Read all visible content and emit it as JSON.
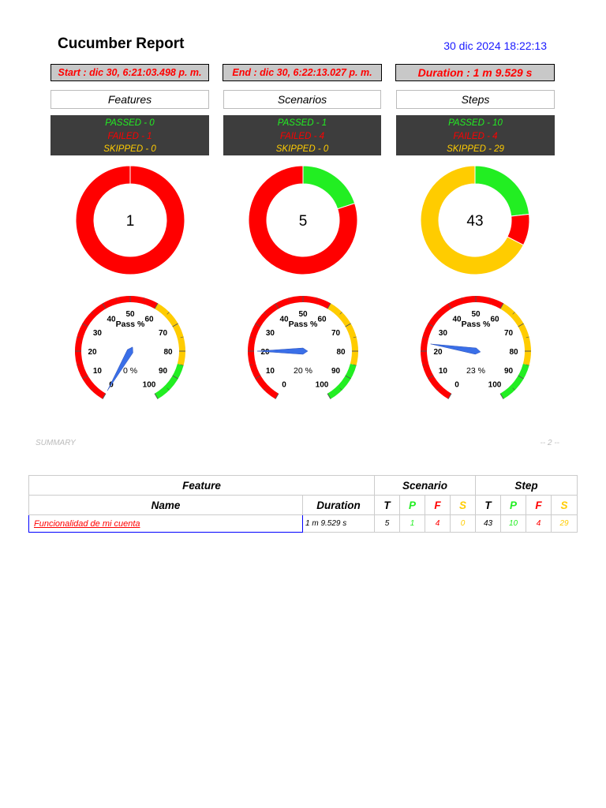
{
  "title": "Cucumber Report",
  "datetime": "30 dic 2024 18:22:13",
  "start": "Start : dic 30, 6:21:03.498 p. m.",
  "end": "End : dic 30, 6:22:13.027 p. m.",
  "duration": "Duration : 1 m 9.529 s",
  "colors": {
    "passed": "#22ee22",
    "failed": "#ff0000",
    "skipped": "#ffcc00"
  },
  "columns": [
    {
      "header": "Features",
      "passed": "PASSED - 0",
      "failed": "FAILED - 1",
      "skipped": "SKIPPED - 0",
      "total": "1",
      "counts": {
        "passed": 0,
        "failed": 1,
        "skipped": 0
      },
      "gauge_pct": 0,
      "gauge_label": "0 %"
    },
    {
      "header": "Scenarios",
      "passed": "PASSED - 1",
      "failed": "FAILED - 4",
      "skipped": "SKIPPED - 0",
      "total": "5",
      "counts": {
        "passed": 1,
        "failed": 4,
        "skipped": 0
      },
      "gauge_pct": 20,
      "gauge_label": "20 %"
    },
    {
      "header": "Steps",
      "passed": "PASSED - 10",
      "failed": "FAILED - 4",
      "skipped": "SKIPPED - 29",
      "total": "43",
      "counts": {
        "passed": 10,
        "failed": 4,
        "skipped": 29
      },
      "gauge_pct": 23,
      "gauge_label": "23 %"
    }
  ],
  "gauge": {
    "title": "Pass %",
    "ticks": [
      "0",
      "10",
      "20",
      "30",
      "40",
      "50",
      "60",
      "70",
      "80",
      "90",
      "100"
    ]
  },
  "summary_label": "SUMMARY",
  "page_indicator": "-- 2 --",
  "table": {
    "group_feature": "Feature",
    "group_scenario": "Scenario",
    "group_step": "Step",
    "name_header": "Name",
    "duration_header": "Duration",
    "t": "T",
    "p": "P",
    "f": "F",
    "s": "S",
    "rows": [
      {
        "name": "Funcionalidad de mi cuenta",
        "duration": "1 m 9.529 s",
        "scenario": {
          "t": "5",
          "p": "1",
          "f": "4",
          "s": "0"
        },
        "step": {
          "t": "43",
          "p": "10",
          "f": "4",
          "s": "29"
        }
      }
    ]
  }
}
